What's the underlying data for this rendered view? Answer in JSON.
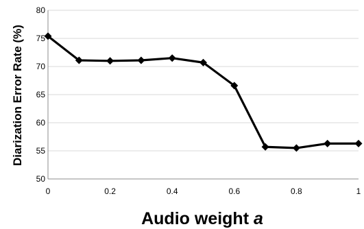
{
  "chart_data": {
    "type": "line",
    "title": "",
    "xlabel_prefix": "Audio weight ",
    "xlabel_var": "a",
    "ylabel": "Diarization Error Rate (%)",
    "xlim": [
      0,
      1
    ],
    "ylim": [
      50,
      80
    ],
    "x_ticks": [
      0,
      0.2,
      0.4,
      0.6,
      0.8,
      1
    ],
    "x_tick_labels": [
      "0",
      "0.2",
      "0.4",
      "0.6",
      "0.8",
      "1"
    ],
    "y_ticks": [
      50,
      55,
      60,
      65,
      70,
      75,
      80
    ],
    "y_tick_labels": [
      "50",
      "55",
      "60",
      "65",
      "70",
      "75",
      "80"
    ],
    "grid": "horizontal",
    "legend": "none",
    "series": [
      {
        "x": [
          0,
          0.1,
          0.2,
          0.3,
          0.4,
          0.5,
          0.6,
          0.7,
          0.8,
          0.9,
          1.0
        ],
        "values": [
          75.4,
          71.1,
          71.0,
          71.1,
          71.5,
          70.7,
          66.6,
          55.7,
          55.5,
          56.3,
          56.3
        ],
        "color": "#000000",
        "marker": "diamond"
      }
    ]
  }
}
